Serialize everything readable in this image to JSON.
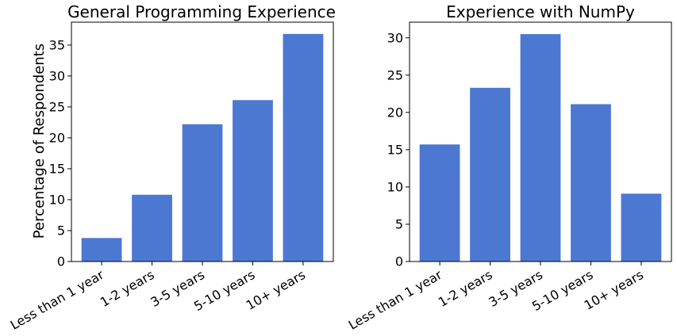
{
  "chart_data": [
    {
      "type": "bar",
      "title": "General Programming Experience",
      "xlabel": "",
      "ylabel": "Percentage of Respondents",
      "categories": [
        "Less than 1 year",
        "1-2 years",
        "3-5 years",
        "5-10 years",
        "10+ years"
      ],
      "values": [
        3.8,
        10.8,
        22.2,
        26.1,
        36.8
      ],
      "ylim": [
        0,
        38.7
      ],
      "yticks": [
        0,
        5,
        10,
        15,
        20,
        25,
        30,
        35
      ],
      "grid": false,
      "color": "#4c78d2"
    },
    {
      "type": "bar",
      "title": "Experience with NumPy",
      "xlabel": "",
      "ylabel": "",
      "categories": [
        "Less than 1 year",
        "1-2 years",
        "3-5 years",
        "5-10 years",
        "10+ years"
      ],
      "values": [
        15.7,
        23.3,
        30.5,
        21.1,
        9.1
      ],
      "ylim": [
        0,
        32.1
      ],
      "yticks": [
        0,
        5,
        10,
        15,
        20,
        25,
        30
      ],
      "grid": false,
      "color": "#4c78d2"
    }
  ]
}
